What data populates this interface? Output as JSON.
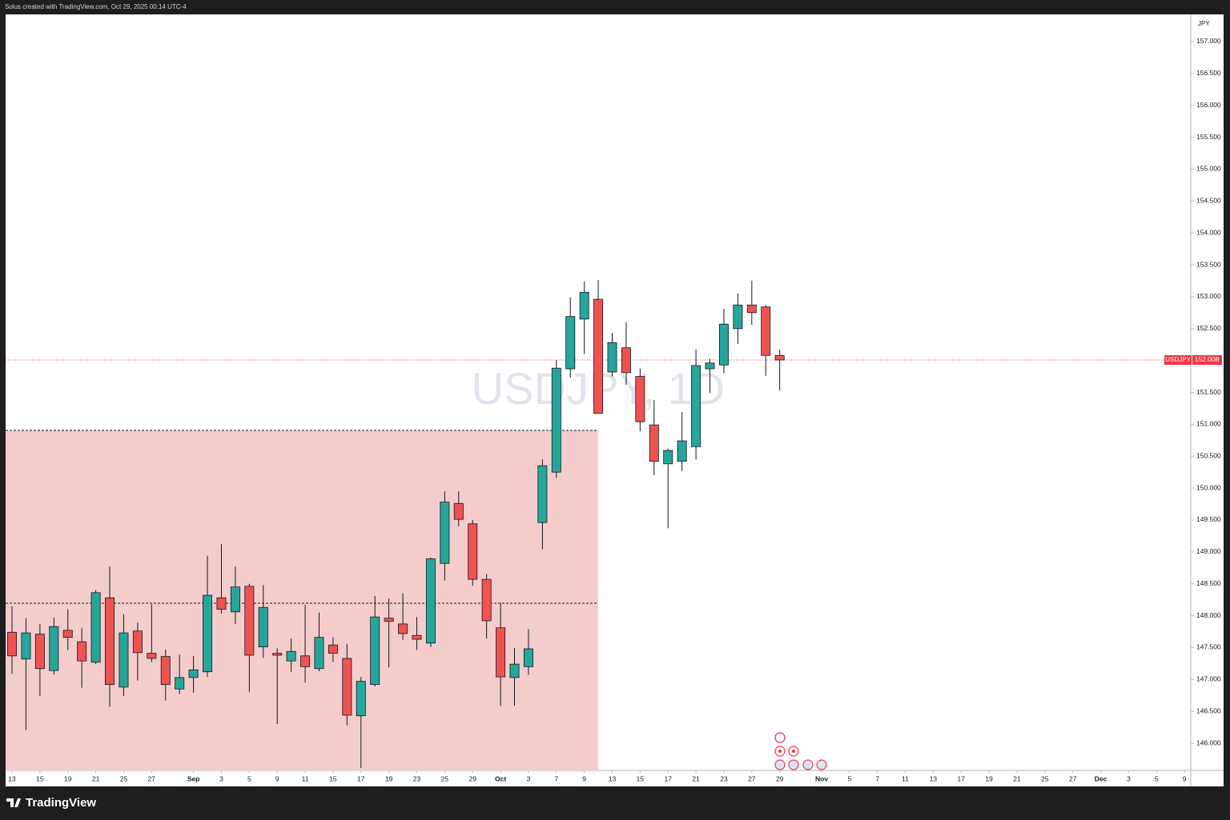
{
  "header": "Solus created with TradingView.com, Oct 29, 2025 00:14 UTC-4",
  "footer": "TradingView",
  "chart_data": {
    "type": "candlestick",
    "watermark": "USDJPY, 1D",
    "currency": "JPY",
    "up_color": "#26a69a",
    "down_color": "#ef5350",
    "x": [
      0,
      1,
      2,
      3,
      4,
      5,
      6,
      7,
      8,
      9,
      10,
      11,
      12,
      13,
      14,
      15,
      16,
      17,
      18,
      19,
      20,
      21,
      22,
      23,
      24,
      25,
      26,
      27,
      28,
      29,
      30,
      31,
      32,
      33,
      34,
      35,
      36,
      37,
      38,
      39,
      40,
      41,
      42,
      43,
      44,
      45,
      46,
      47,
      48,
      49,
      50,
      51,
      52,
      53,
      54,
      55
    ],
    "open": [
      147.74,
      147.32,
      147.71,
      147.14,
      147.77,
      147.59,
      147.27,
      148.28,
      146.88,
      147.76,
      147.41,
      147.36,
      146.85,
      147.03,
      147.12,
      148.28,
      148.06,
      148.46,
      147.51,
      147.41,
      147.29,
      147.37,
      147.17,
      147.54,
      147.33,
      146.43,
      146.92,
      147.96,
      147.87,
      147.69,
      147.57,
      148.82,
      149.76,
      149.44,
      148.57,
      147.81,
      147.03,
      147.2,
      149.46,
      150.25,
      151.87,
      152.65,
      152.96,
      151.82,
      152.2,
      151.75,
      150.99,
      150.38,
      150.42,
      150.65,
      151.87,
      151.93,
      152.5,
      152.87,
      152.84,
      152.08
    ],
    "high": [
      148.15,
      147.96,
      147.87,
      147.97,
      148.1,
      147.81,
      148.4,
      148.77,
      148.02,
      147.89,
      148.18,
      147.47,
      147.39,
      147.37,
      148.94,
      149.12,
      148.77,
      148.5,
      148.48,
      147.49,
      147.64,
      148.17,
      148.05,
      147.66,
      147.56,
      147.04,
      148.31,
      148.27,
      148.35,
      147.98,
      148.91,
      149.95,
      149.95,
      149.5,
      148.65,
      148.2,
      147.49,
      147.79,
      150.45,
      152.01,
      152.99,
      153.24,
      153.26,
      152.43,
      152.6,
      151.87,
      151.38,
      150.62,
      151.19,
      152.17,
      152.03,
      152.81,
      153.05,
      153.25,
      152.87,
      152.17
    ],
    "low": [
      147.09,
      146.21,
      146.74,
      147.08,
      147.46,
      146.87,
      147.24,
      146.57,
      146.74,
      146.98,
      147.27,
      146.67,
      146.77,
      146.79,
      147.04,
      148.03,
      147.87,
      146.8,
      147.34,
      146.3,
      147.12,
      146.95,
      147.13,
      147.27,
      146.28,
      145.61,
      146.89,
      147.19,
      147.62,
      147.46,
      147.51,
      148.55,
      149.4,
      148.47,
      147.64,
      146.58,
      146.59,
      147.07,
      149.04,
      150.16,
      151.73,
      152.1,
      151.17,
      151.75,
      151.62,
      150.89,
      150.2,
      149.37,
      150.27,
      150.45,
      151.49,
      151.8,
      152.26,
      152.56,
      151.76,
      151.53
    ],
    "close": [
      147.37,
      147.73,
      147.17,
      147.83,
      147.66,
      147.29,
      148.36,
      146.92,
      147.73,
      147.42,
      147.33,
      146.92,
      147.03,
      147.15,
      148.32,
      148.1,
      148.45,
      147.38,
      148.13,
      147.38,
      147.44,
      147.2,
      147.66,
      147.41,
      146.44,
      146.97,
      147.98,
      147.91,
      147.72,
      147.63,
      148.89,
      149.78,
      149.51,
      148.57,
      147.92,
      147.04,
      147.24,
      147.48,
      150.35,
      151.88,
      152.69,
      153.07,
      151.17,
      152.28,
      151.81,
      151.04,
      150.42,
      150.59,
      150.74,
      151.92,
      151.96,
      152.57,
      152.87,
      152.75,
      152.08,
      152.008
    ],
    "xlim": [
      -0.46,
      84.45
    ],
    "ylim": [
      145.574,
      157.426
    ],
    "xticks": [
      {
        "value": 0,
        "label": "13"
      },
      {
        "value": 2,
        "label": "15"
      },
      {
        "value": 4,
        "label": "19"
      },
      {
        "value": 6,
        "label": "21"
      },
      {
        "value": 8,
        "label": "25"
      },
      {
        "value": 10,
        "label": "27"
      },
      {
        "value": 13,
        "label": "Sep"
      },
      {
        "value": 15,
        "label": "3"
      },
      {
        "value": 17,
        "label": "5"
      },
      {
        "value": 19,
        "label": "9"
      },
      {
        "value": 21,
        "label": "11"
      },
      {
        "value": 23,
        "label": "15"
      },
      {
        "value": 25,
        "label": "17"
      },
      {
        "value": 27,
        "label": "19"
      },
      {
        "value": 29,
        "label": "23"
      },
      {
        "value": 31,
        "label": "25"
      },
      {
        "value": 33,
        "label": "29"
      },
      {
        "value": 35,
        "label": "Oct"
      },
      {
        "value": 37,
        "label": "3"
      },
      {
        "value": 39,
        "label": "7"
      },
      {
        "value": 41,
        "label": "9"
      },
      {
        "value": 43,
        "label": "13"
      },
      {
        "value": 45,
        "label": "15"
      },
      {
        "value": 47,
        "label": "17"
      },
      {
        "value": 49,
        "label": "21"
      },
      {
        "value": 51,
        "label": "23"
      },
      {
        "value": 53,
        "label": "27"
      },
      {
        "value": 55,
        "label": "29"
      },
      {
        "value": 58,
        "label": "Nov"
      },
      {
        "value": 60,
        "label": "5"
      },
      {
        "value": 62,
        "label": "7"
      },
      {
        "value": 64,
        "label": "11"
      },
      {
        "value": 66,
        "label": "13"
      },
      {
        "value": 68,
        "label": "17"
      },
      {
        "value": 70,
        "label": "19"
      },
      {
        "value": 72,
        "label": "21"
      },
      {
        "value": 74,
        "label": "25"
      },
      {
        "value": 76,
        "label": "27"
      },
      {
        "value": 78,
        "label": "Dec"
      },
      {
        "value": 80,
        "label": "3"
      },
      {
        "value": 82,
        "label": "5"
      },
      {
        "value": 84,
        "label": "9"
      }
    ],
    "yticks": [
      {
        "value": 146,
        "label": "146.000"
      },
      {
        "value": 146.5,
        "label": "146.500"
      },
      {
        "value": 147,
        "label": "147.000"
      },
      {
        "value": 147.5,
        "label": "147.500"
      },
      {
        "value": 148,
        "label": "148.000"
      },
      {
        "value": 148.5,
        "label": "148.500"
      },
      {
        "value": 149,
        "label": "149.000"
      },
      {
        "value": 149.5,
        "label": "149.500"
      },
      {
        "value": 150,
        "label": "150.000"
      },
      {
        "value": 150.5,
        "label": "150.500"
      },
      {
        "value": 151,
        "label": "151.000"
      },
      {
        "value": 151.5,
        "label": "151.500"
      },
      {
        "value": 152,
        "label": "152.000"
      },
      {
        "value": 152.5,
        "label": "152.500"
      },
      {
        "value": 153,
        "label": "153.000"
      },
      {
        "value": 153.5,
        "label": "153.500"
      },
      {
        "value": 154,
        "label": "154.000"
      },
      {
        "value": 154.5,
        "label": "154.500"
      },
      {
        "value": 155,
        "label": "155.000"
      },
      {
        "value": 155.5,
        "label": "155.500"
      },
      {
        "value": 156,
        "label": "156.000"
      },
      {
        "value": 156.5,
        "label": "156.500"
      },
      {
        "value": 157,
        "label": "157.000"
      }
    ],
    "last_price": {
      "name": "USDJPY",
      "value": 152.008,
      "color": "#f23645"
    },
    "zone": {
      "top": 150.905,
      "level": 148.196,
      "x_end": 42,
      "color": "#f4cccc"
    }
  }
}
